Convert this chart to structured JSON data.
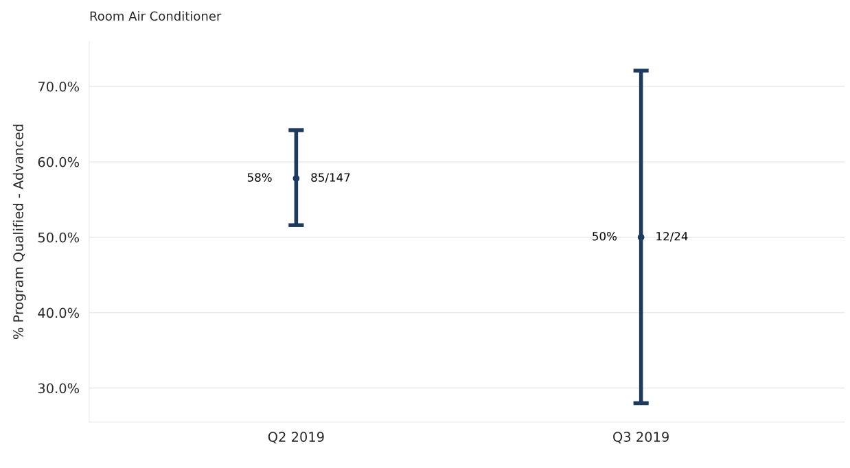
{
  "chart_data": {
    "type": "scatter",
    "title": "Room Air Conditioner",
    "ylabel": "% Program Qualified - Advanced",
    "categories": [
      "Q2 2019",
      "Q3 2019"
    ],
    "series": [
      {
        "color": "#1f3a5f",
        "values": [
          57.8,
          50
        ],
        "errors": [
          [
            51.6,
            64.2
          ],
          [
            28.0,
            72.1
          ]
        ],
        "value_labels": [
          "58%",
          "50%"
        ]
      }
    ],
    "annotations": [
      {
        "text": "85/147",
        "x": "Q2 2019",
        "y": 57.8
      },
      {
        "text": "12/24",
        "x": "Q3 2019",
        "y": 50
      }
    ],
    "ylim": [
      25.5,
      76
    ],
    "yticks": [
      {
        "value": 30,
        "label": "30.0%"
      },
      {
        "value": 40,
        "label": "40.0%"
      },
      {
        "value": 50,
        "label": "50.0%"
      },
      {
        "value": 60,
        "label": "60.0%"
      },
      {
        "value": 70,
        "label": "70.0%"
      }
    ],
    "grid": "y",
    "marker": "circle"
  }
}
